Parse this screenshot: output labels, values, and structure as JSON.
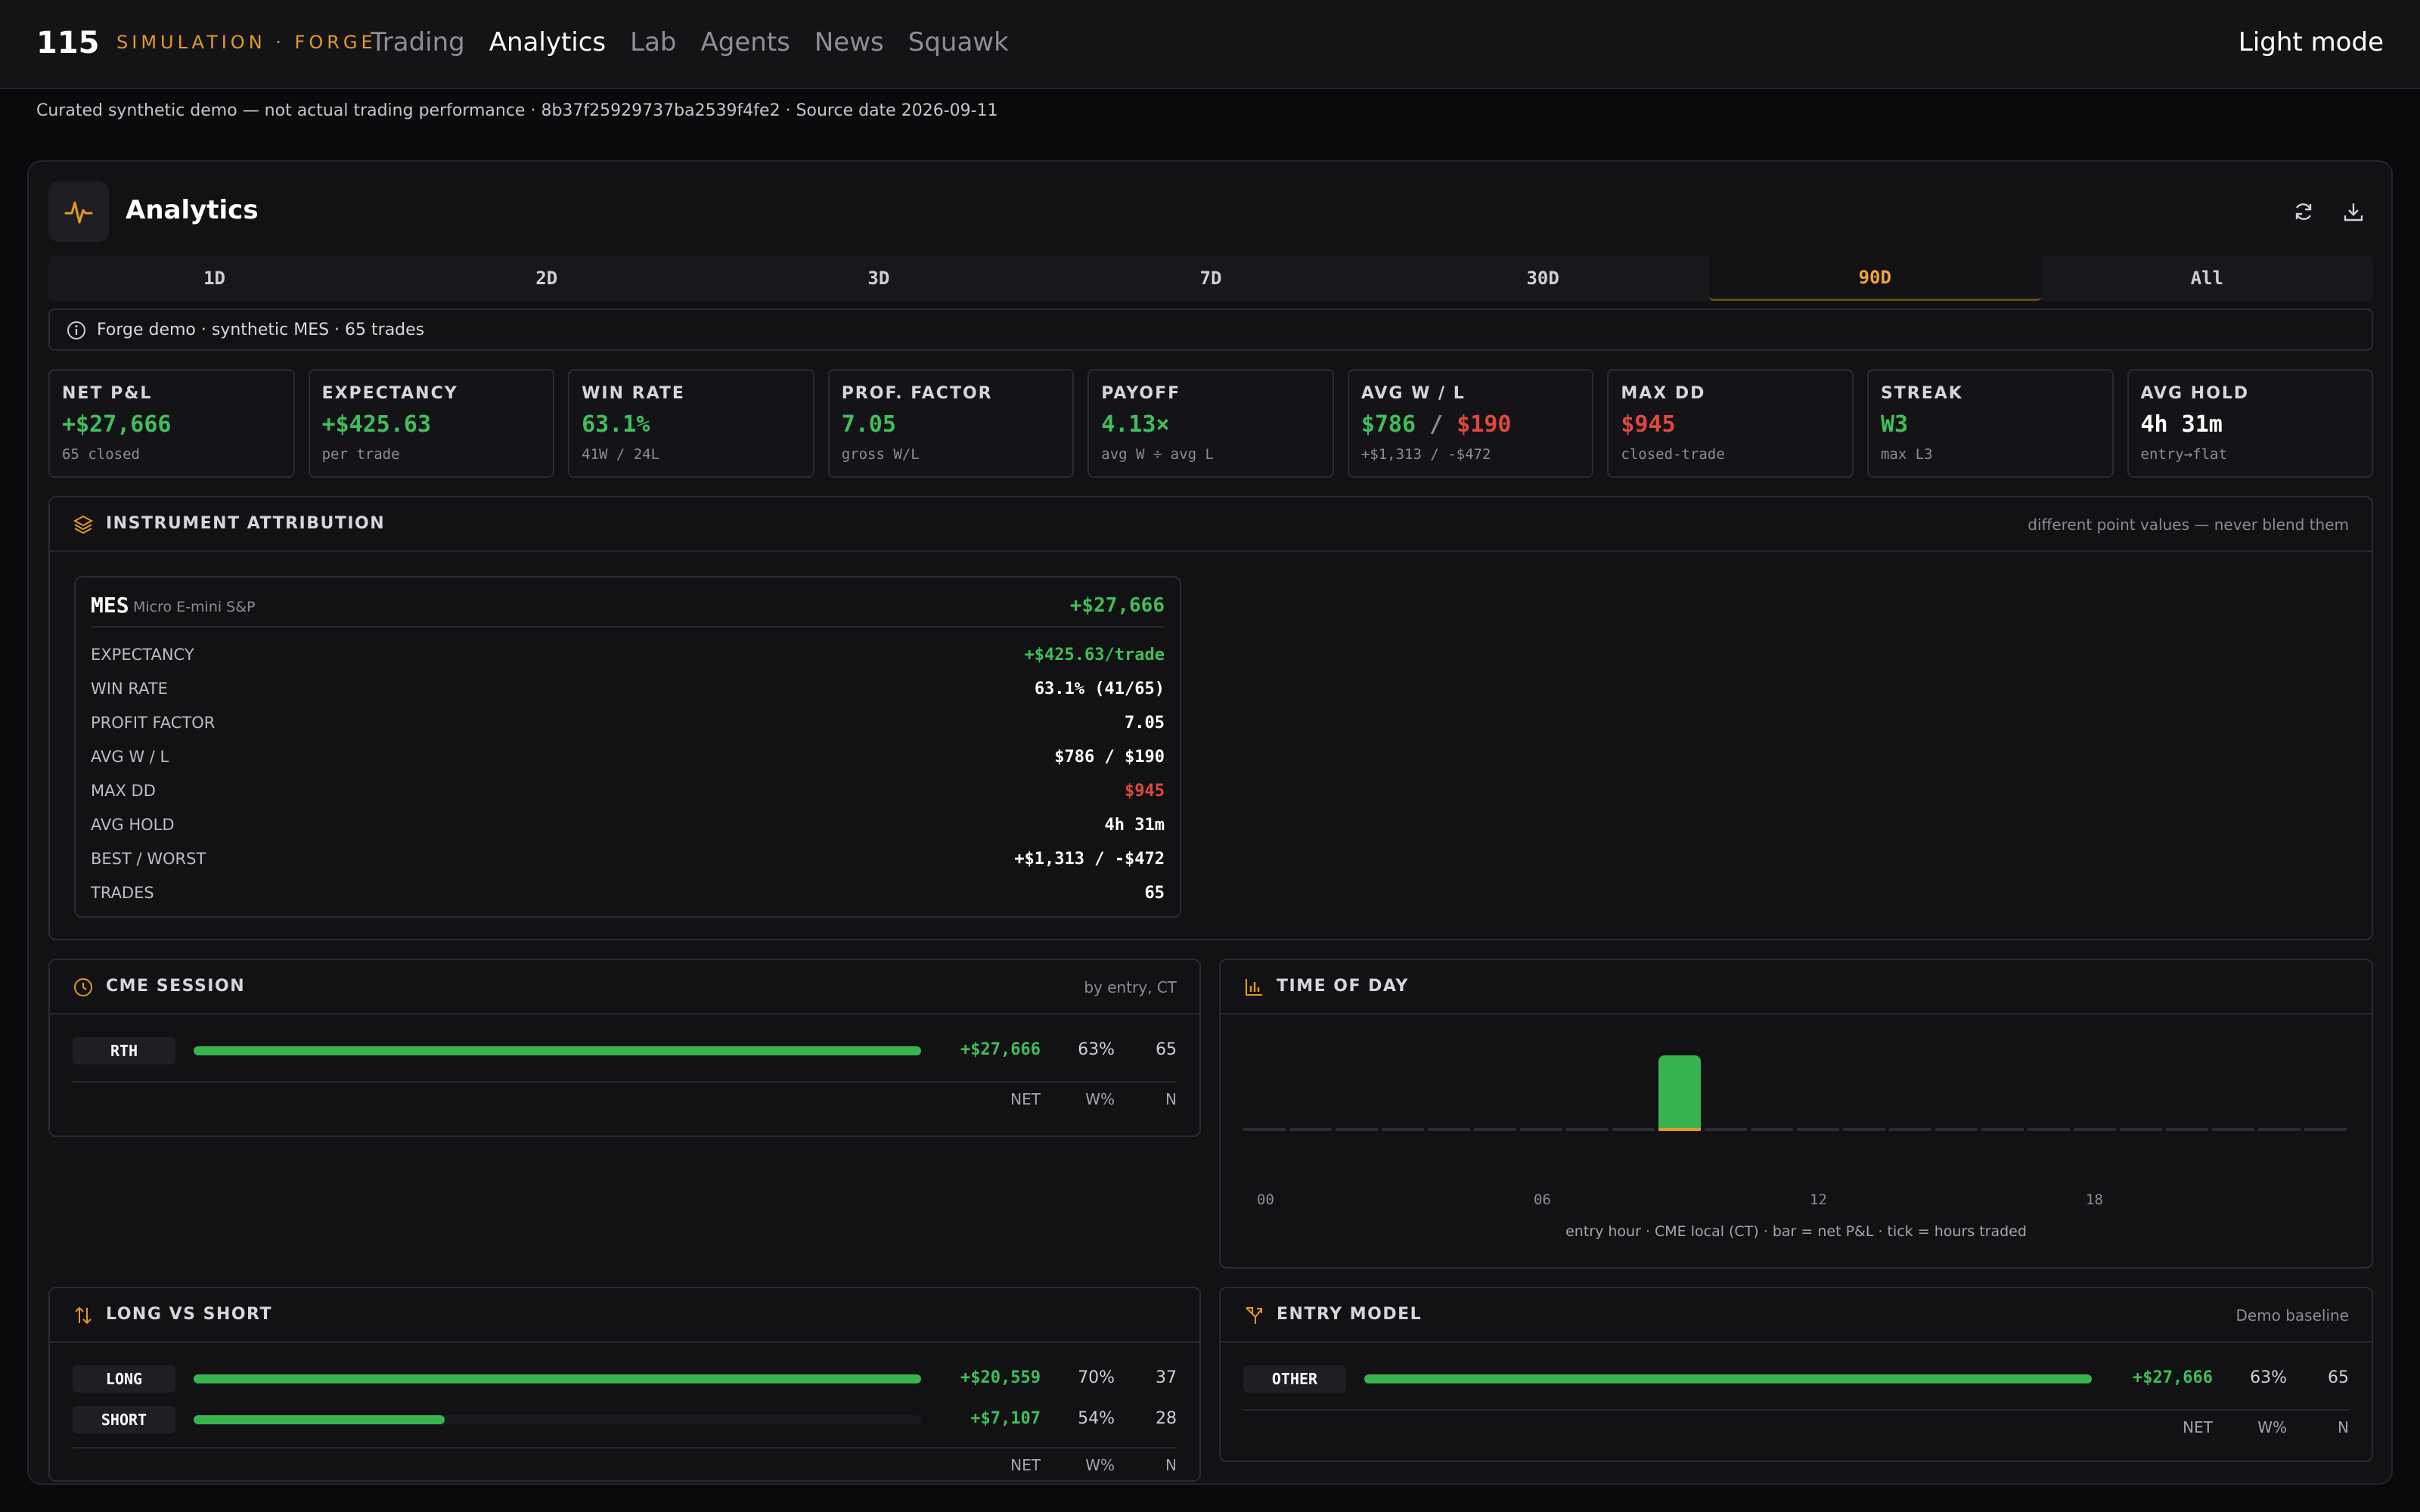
{
  "nav": {
    "logo": "115",
    "brand": "SIMULATION · FORGE",
    "items": [
      "Trading",
      "Analytics",
      "Lab",
      "Agents",
      "News",
      "Squawk"
    ],
    "active": "Analytics",
    "mode_toggle": "Light mode"
  },
  "disclaimer": "Curated synthetic demo — not actual trading performance · 8b37f25929737ba2539f4fe2 · Source date 2026-09-11",
  "panel": {
    "title": "Analytics",
    "icons": {
      "header": "pulse-icon",
      "refresh": "refresh-icon",
      "download": "download-icon"
    },
    "tabs": [
      "1D",
      "2D",
      "3D",
      "7D",
      "30D",
      "90D",
      "All"
    ],
    "active_tab": "90D",
    "info": "Forge demo · synthetic MES · 65 trades"
  },
  "kpis": [
    {
      "label": "NET P&L",
      "value": "+$27,666",
      "sub": "65 closed"
    },
    {
      "label": "EXPECTANCY",
      "value": "+$425.63",
      "sub": "per trade"
    },
    {
      "label": "WIN RATE",
      "value": "63.1%",
      "sub": "41W / 24L"
    },
    {
      "label": "PROF. FACTOR",
      "value": "7.05",
      "sub": "gross W/L"
    },
    {
      "label": "PAYOFF",
      "value": "4.13×",
      "sub": "avg W ÷ avg L"
    },
    {
      "label": "AVG W / L",
      "value_win": "$786",
      "sep": "/",
      "value_loss": "$190",
      "sub": "+$1,313 / -$472"
    },
    {
      "label": "MAX DD",
      "value": "$945",
      "sub": "closed-trade"
    },
    {
      "label": "STREAK",
      "value": "W3",
      "sub": "max L3"
    },
    {
      "label": "AVG HOLD",
      "value": "4h 31m",
      "sub": "entry→flat"
    }
  ],
  "instrument": {
    "title": "INSTRUMENT ATTRIBUTION",
    "note": "different point values — never blend them",
    "symbol": "MES",
    "symbol_desc": "Micro E-mini S&P",
    "net": "+$27,666",
    "rows": [
      {
        "k": "EXPECTANCY",
        "v": "+$425.63/trade"
      },
      {
        "k": "WIN RATE",
        "v": "63.1% (41/65)"
      },
      {
        "k": "PROFIT FACTOR",
        "v": "7.05"
      },
      {
        "k": "AVG W / L",
        "v": "$786 / $190"
      },
      {
        "k": "MAX DD",
        "v": "$945"
      },
      {
        "k": "AVG HOLD",
        "v": "4h 31m"
      },
      {
        "k": "BEST / WORST",
        "v": "+$1,313 / -$472"
      },
      {
        "k": "TRADES",
        "v": "65"
      }
    ]
  },
  "session": {
    "title": "CME SESSION",
    "note": "by entry, CT",
    "rows": [
      {
        "label": "RTH",
        "net": "+$27,666",
        "wpct": "63%",
        "n": "65",
        "fill": 1.0
      }
    ],
    "foot": {
      "net": "NET",
      "w": "W%",
      "n": "N"
    }
  },
  "tod": {
    "title": "TIME OF DAY",
    "ticks": [
      "00",
      "06",
      "12",
      "18"
    ],
    "caption": "entry hour · CME local (CT) · bar = net P&L · tick = hours traded",
    "active_hour": 9
  },
  "longshort": {
    "title": "LONG VS SHORT",
    "rows": [
      {
        "label": "LONG",
        "net": "+$20,559",
        "wpct": "70%",
        "n": "37",
        "fill": 1.0
      },
      {
        "label": "SHORT",
        "net": "+$7,107",
        "wpct": "54%",
        "n": "28",
        "fill": 0.345
      }
    ],
    "foot": {
      "net": "NET",
      "w": "W%",
      "n": "N"
    }
  },
  "entry": {
    "title": "ENTRY MODEL",
    "note": "Demo baseline",
    "rows": [
      {
        "label": "OTHER",
        "net": "+$27,666",
        "wpct": "63%",
        "n": "65",
        "fill": 1.0
      }
    ],
    "foot": {
      "net": "NET",
      "w": "W%",
      "n": "N"
    }
  }
}
